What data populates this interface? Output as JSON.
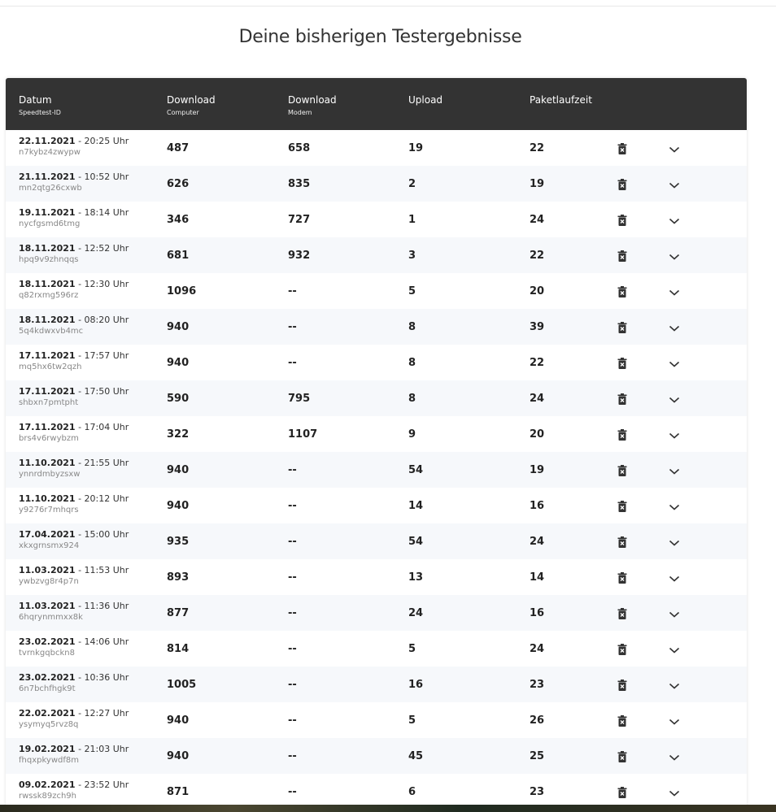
{
  "page": {
    "title": "Deine bisherigen Testergebnisse"
  },
  "table": {
    "headers": [
      {
        "label": "Datum",
        "sub": "Speedtest-ID"
      },
      {
        "label": "Download",
        "sub": "Computer"
      },
      {
        "label": "Download",
        "sub": "Modem"
      },
      {
        "label": "Upload",
        "sub": ""
      },
      {
        "label": "Paketlaufzeit",
        "sub": ""
      }
    ],
    "rows": [
      {
        "date": "22.11.2021",
        "time": " - 20:25 Uhr",
        "id": "n7kybz4zwypw",
        "dl_pc": "487",
        "dl_modem": "658",
        "upload": "19",
        "ping": "22"
      },
      {
        "date": "21.11.2021",
        "time": " - 10:52 Uhr",
        "id": "mn2qtg26cxwb",
        "dl_pc": "626",
        "dl_modem": "835",
        "upload": "2",
        "ping": "19"
      },
      {
        "date": "19.11.2021",
        "time": " - 18:14 Uhr",
        "id": "nycfgsmd6tmg",
        "dl_pc": "346",
        "dl_modem": "727",
        "upload": "1",
        "ping": "24"
      },
      {
        "date": "18.11.2021",
        "time": " - 12:52 Uhr",
        "id": "hpq9v9zhnqqs",
        "dl_pc": "681",
        "dl_modem": "932",
        "upload": "3",
        "ping": "22"
      },
      {
        "date": "18.11.2021",
        "time": " - 12:30 Uhr",
        "id": "q82rxmg596rz",
        "dl_pc": "1096",
        "dl_modem": "--",
        "upload": "5",
        "ping": "20"
      },
      {
        "date": "18.11.2021",
        "time": " - 08:20 Uhr",
        "id": "5q4kdwxvb4mc",
        "dl_pc": "940",
        "dl_modem": "--",
        "upload": "8",
        "ping": "39"
      },
      {
        "date": "17.11.2021",
        "time": " - 17:57 Uhr",
        "id": "mq5hx6tw2qzh",
        "dl_pc": "940",
        "dl_modem": "--",
        "upload": "8",
        "ping": "22"
      },
      {
        "date": "17.11.2021",
        "time": " - 17:50 Uhr",
        "id": "shbxn7pmtpht",
        "dl_pc": "590",
        "dl_modem": "795",
        "upload": "8",
        "ping": "24"
      },
      {
        "date": "17.11.2021",
        "time": " - 17:04 Uhr",
        "id": "brs4v6rwybzm",
        "dl_pc": "322",
        "dl_modem": "1107",
        "upload": "9",
        "ping": "20"
      },
      {
        "date": "11.10.2021",
        "time": " - 21:55 Uhr",
        "id": "ynnrdmbyzsxw",
        "dl_pc": "940",
        "dl_modem": "--",
        "upload": "54",
        "ping": "19"
      },
      {
        "date": "11.10.2021",
        "time": " - 20:12 Uhr",
        "id": "y9276r7mhqrs",
        "dl_pc": "940",
        "dl_modem": "--",
        "upload": "14",
        "ping": "16"
      },
      {
        "date": "17.04.2021",
        "time": " - 15:00 Uhr",
        "id": "xkxgrnsmx924",
        "dl_pc": "935",
        "dl_modem": "--",
        "upload": "54",
        "ping": "24"
      },
      {
        "date": "11.03.2021",
        "time": " - 11:53 Uhr",
        "id": "ywbzvg8r4p7n",
        "dl_pc": "893",
        "dl_modem": "--",
        "upload": "13",
        "ping": "14"
      },
      {
        "date": "11.03.2021",
        "time": " - 11:36 Uhr",
        "id": "6hqrynmmxx8k",
        "dl_pc": "877",
        "dl_modem": "--",
        "upload": "24",
        "ping": "16"
      },
      {
        "date": "23.02.2021",
        "time": " - 14:06 Uhr",
        "id": "tvrnkgqbckn8",
        "dl_pc": "814",
        "dl_modem": "--",
        "upload": "5",
        "ping": "24"
      },
      {
        "date": "23.02.2021",
        "time": " - 10:36 Uhr",
        "id": "6n7bchfhgk9t",
        "dl_pc": "1005",
        "dl_modem": "--",
        "upload": "16",
        "ping": "23"
      },
      {
        "date": "22.02.2021",
        "time": " - 12:27 Uhr",
        "id": "ysymyq5rvz8q",
        "dl_pc": "940",
        "dl_modem": "--",
        "upload": "5",
        "ping": "26"
      },
      {
        "date": "19.02.2021",
        "time": " - 21:03 Uhr",
        "id": "fhqxpkywdf8m",
        "dl_pc": "940",
        "dl_modem": "--",
        "upload": "45",
        "ping": "25"
      },
      {
        "date": "09.02.2021",
        "time": " - 23:52 Uhr",
        "id": "rwssk89zch9h",
        "dl_pc": "871",
        "dl_modem": "--",
        "upload": "6",
        "ping": "23"
      }
    ],
    "icons": {
      "delete": "trash-icon",
      "expand": "chevron-down-icon"
    }
  },
  "colors": {
    "header_bg": "#333333",
    "row_alt": "#f6f8fb"
  }
}
